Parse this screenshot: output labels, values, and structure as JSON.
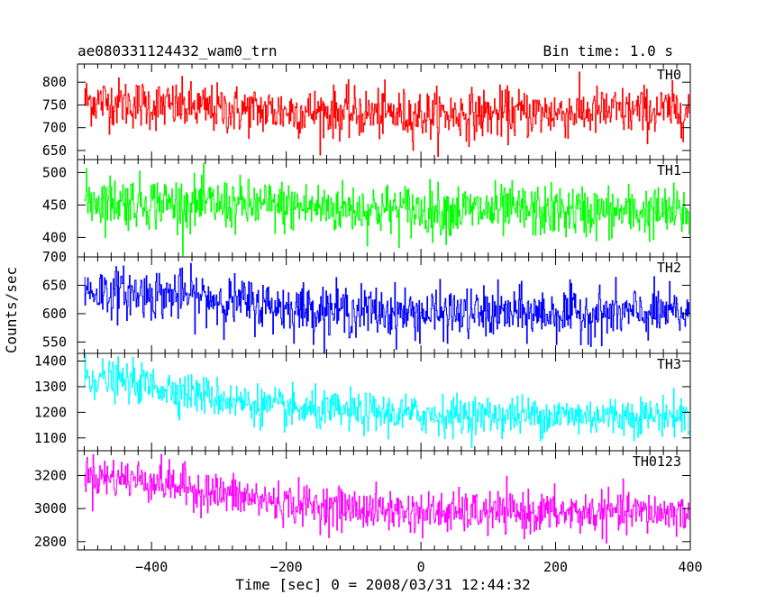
{
  "chart_data": {
    "type": "line",
    "title": "ae080331124432_wam0_trn",
    "bin_time_label": "Bin time: 1.0 s",
    "xlabel": "Time [sec] 0 = 2008/03/31 12:44:32",
    "ylabel": "Counts/sec",
    "xlim": [
      -510,
      400
    ],
    "x_ticks": [
      -400,
      -200,
      0,
      200,
      400
    ],
    "x_tick_labels": [
      "−400",
      "−200",
      "0",
      "200",
      "400"
    ],
    "bin_width": 1.0,
    "x_start": -500,
    "x_end": 398,
    "panels": [
      {
        "name": "TH0",
        "color": "#ff0000",
        "ylim": [
          630,
          840
        ],
        "y_ticks": [
          650,
          700,
          750,
          800
        ],
        "trend": {
          "x": [
            -500,
            -300,
            0,
            400
          ],
          "y": [
            760,
            740,
            728,
            738
          ]
        },
        "noise_sd": 27
      },
      {
        "name": "TH1",
        "color": "#00ff00",
        "ylim": [
          370,
          520
        ],
        "y_ticks": [
          400,
          450,
          500
        ],
        "trend": {
          "x": [
            -500,
            -300,
            0,
            400
          ],
          "y": [
            458,
            450,
            442,
            438
          ]
        },
        "noise_sd": 20
      },
      {
        "name": "TH2",
        "color": "#0000ff",
        "ylim": [
          530,
          700
        ],
        "y_ticks": [
          550,
          600,
          650,
          700
        ],
        "trend": {
          "x": [
            -500,
            -350,
            -200,
            0,
            400
          ],
          "y": [
            640,
            632,
            610,
            600,
            600
          ]
        },
        "noise_sd": 22
      },
      {
        "name": "TH3",
        "color": "#00ffff",
        "ylim": [
          1050,
          1430
        ],
        "y_ticks": [
          1100,
          1200,
          1300,
          1400
        ],
        "trend": {
          "x": [
            -500,
            -400,
            -300,
            -200,
            0,
            400
          ],
          "y": [
            1340,
            1305,
            1255,
            1210,
            1190,
            1185
          ]
        },
        "noise_sd": 38
      },
      {
        "name": "TH0123",
        "color": "#ff00ff",
        "ylim": [
          2750,
          3350
        ],
        "y_ticks": [
          2800,
          3000,
          3200
        ],
        "trend": {
          "x": [
            -500,
            -400,
            -300,
            -200,
            -100,
            0,
            400
          ],
          "y": [
            3200,
            3170,
            3090,
            3030,
            3000,
            2975,
            2975
          ]
        },
        "noise_sd": 62
      }
    ]
  }
}
